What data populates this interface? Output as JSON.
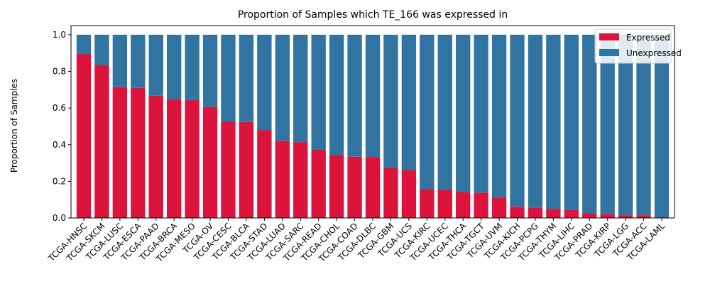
{
  "chart_data": {
    "type": "bar",
    "stacked": true,
    "title": "Proportion of Samples which TE_166 was expressed in",
    "xlabel": "",
    "ylabel": "Proportion of Samples",
    "ylim": [
      0,
      1.05
    ],
    "yticks": [
      "0.0",
      "0.2",
      "0.4",
      "0.6",
      "0.8",
      "1.0"
    ],
    "legend_position": "top-right",
    "grid": false,
    "categories": [
      "TCGA-HNSC",
      "TCGA-SKCM",
      "TCGA-LUSC",
      "TCGA-ESCA",
      "TCGA-PAAD",
      "TCGA-BRCA",
      "TCGA-MESO",
      "TCGA-OV",
      "TCGA-CESC",
      "TCGA-BLCA",
      "TCGA-STAD",
      "TCGA-LUAD",
      "TCGA-SARC",
      "TCGA-READ",
      "TCGA-CHOL",
      "TCGA-COAD",
      "TCGA-DLBC",
      "TCGA-GBM",
      "TCGA-UCS",
      "TCGA-KIRC",
      "TCGA-UCEC",
      "TCGA-THCA",
      "TCGA-TGCT",
      "TCGA-UVM",
      "TCGA-KICH",
      "TCGA-PCPG",
      "TCGA-THYM",
      "TCGA-LIHC",
      "TCGA-PRAD",
      "TCGA-KIRP",
      "TCGA-LGG",
      "TCGA-ACC",
      "TCGA-LAML"
    ],
    "series": [
      {
        "name": "Expressed",
        "color": "#dc143c",
        "values": [
          0.895,
          0.833,
          0.714,
          0.71,
          0.667,
          0.648,
          0.643,
          0.605,
          0.525,
          0.524,
          0.48,
          0.42,
          0.414,
          0.372,
          0.343,
          0.334,
          0.333,
          0.273,
          0.263,
          0.157,
          0.153,
          0.143,
          0.137,
          0.112,
          0.061,
          0.057,
          0.049,
          0.043,
          0.025,
          0.022,
          0.015,
          0.015,
          0.0
        ]
      },
      {
        "name": "Unexpressed",
        "color": "#3274a1",
        "values": [
          0.105,
          0.167,
          0.286,
          0.29,
          0.333,
          0.352,
          0.357,
          0.395,
          0.475,
          0.476,
          0.52,
          0.58,
          0.586,
          0.628,
          0.657,
          0.666,
          0.667,
          0.727,
          0.737,
          0.843,
          0.847,
          0.857,
          0.863,
          0.888,
          0.939,
          0.943,
          0.951,
          0.957,
          0.975,
          0.978,
          0.985,
          0.985,
          1.0
        ]
      }
    ]
  }
}
